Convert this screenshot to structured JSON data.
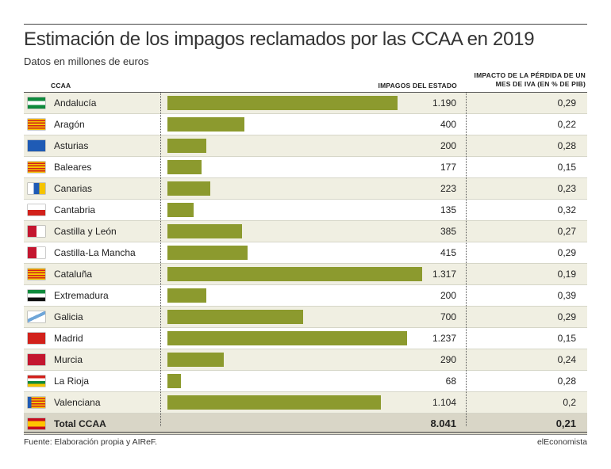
{
  "header": {
    "title": "Estimación de los impagos reclamados por las CCAA en 2019",
    "subtitle": "Datos en millones de euros",
    "col_ccaa": "CCAA",
    "col_impagos": "IMPAGOS DEL ESTADO",
    "col_iva": "IMPACTO DE LA PÉRDIDA DE UN MES DE IVA (EN % DE PIB)"
  },
  "chart_data": {
    "type": "bar",
    "orientation": "horizontal",
    "categories": [
      "Andalucía",
      "Aragón",
      "Asturias",
      "Baleares",
      "Canarias",
      "Cantabria",
      "Castilla y León",
      "Castilla-La Mancha",
      "Cataluña",
      "Extremadura",
      "Galicia",
      "Madrid",
      "Murcia",
      "La Rioja",
      "Valenciana"
    ],
    "series": [
      {
        "name": "IMPAGOS DEL ESTADO",
        "values": [
          1190,
          400,
          200,
          177,
          223,
          135,
          385,
          415,
          1317,
          200,
          700,
          1237,
          290,
          68,
          1104
        ]
      },
      {
        "name": "IMPACTO DE LA PÉRDIDA DE UN MES DE IVA (EN % DE PIB)",
        "values": [
          0.29,
          0.22,
          0.28,
          0.15,
          0.23,
          0.32,
          0.27,
          0.29,
          0.19,
          0.39,
          0.29,
          0.15,
          0.24,
          0.28,
          0.2
        ]
      }
    ],
    "value_labels": [
      "1.190",
      "400",
      "200",
      "177",
      "223",
      "135",
      "385",
      "415",
      "1.317",
      "200",
      "700",
      "1.237",
      "290",
      "68",
      "1.104"
    ],
    "iva_labels": [
      "0,29",
      "0,22",
      "0,28",
      "0,15",
      "0,23",
      "0,32",
      "0,27",
      "0,29",
      "0,19",
      "0,39",
      "0,29",
      "0,15",
      "0,24",
      "0,28",
      "0,2"
    ],
    "xlim": [
      0,
      1317
    ],
    "total": {
      "name": "Total CCAA",
      "value": "8.041",
      "iva": "0,21"
    }
  },
  "flags": [
    "andalucia-flag-icon",
    "aragon-flag-icon",
    "asturias-flag-icon",
    "baleares-flag-icon",
    "canarias-flag-icon",
    "cantabria-flag-icon",
    "castilla-leon-flag-icon",
    "castilla-la-mancha-flag-icon",
    "cataluna-flag-icon",
    "extremadura-flag-icon",
    "galicia-flag-icon",
    "madrid-flag-icon",
    "murcia-flag-icon",
    "la-rioja-flag-icon",
    "valenciana-flag-icon"
  ],
  "colors": {
    "bar": "#8c9a2e",
    "row_alt": "#f0efe2",
    "total_row": "#d9d6c7"
  },
  "footer": {
    "source": "Fuente: Elaboración propia y AIReF.",
    "brand": "elEconomista"
  }
}
